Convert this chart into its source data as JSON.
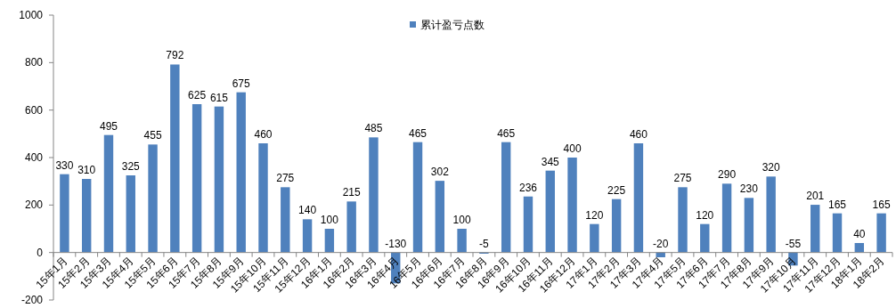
{
  "chart_data": {
    "type": "bar",
    "categories": [
      "15年1月",
      "15年2月",
      "15年3月",
      "15年4月",
      "15年5月",
      "15年6月",
      "15年7月",
      "15年8月",
      "15年9月",
      "15年10月",
      "15年11月",
      "15年12月",
      "16年1月",
      "16年2月",
      "16年3月",
      "16年4月",
      "16年5月",
      "16年6月",
      "16年7月",
      "16年8月",
      "16年9月",
      "16年10月",
      "16年11月",
      "16年12月",
      "17年1月",
      "17年2月",
      "17年3月",
      "17年4月",
      "17年5月",
      "17年6月",
      "17年7月",
      "17年8月",
      "17年9月",
      "17年10月",
      "17年11月",
      "17年12月",
      "18年1月",
      "18年2月"
    ],
    "series": [
      {
        "name": "累计盈亏点数",
        "color": "#4f81bd",
        "values": [
          330,
          310,
          495,
          325,
          455,
          792,
          625,
          615,
          675,
          460,
          275,
          140,
          100,
          215,
          485,
          -130,
          465,
          302,
          100,
          -5,
          465,
          236,
          345,
          400,
          120,
          225,
          460,
          -20,
          275,
          120,
          290,
          230,
          320,
          -55,
          201,
          165,
          40,
          165
        ]
      }
    ],
    "ylim": [
      -200,
      1000
    ],
    "yticks": [
      -200,
      0,
      200,
      400,
      600,
      800,
      1000
    ],
    "data_labels": true,
    "legend": "top",
    "grid": false
  }
}
